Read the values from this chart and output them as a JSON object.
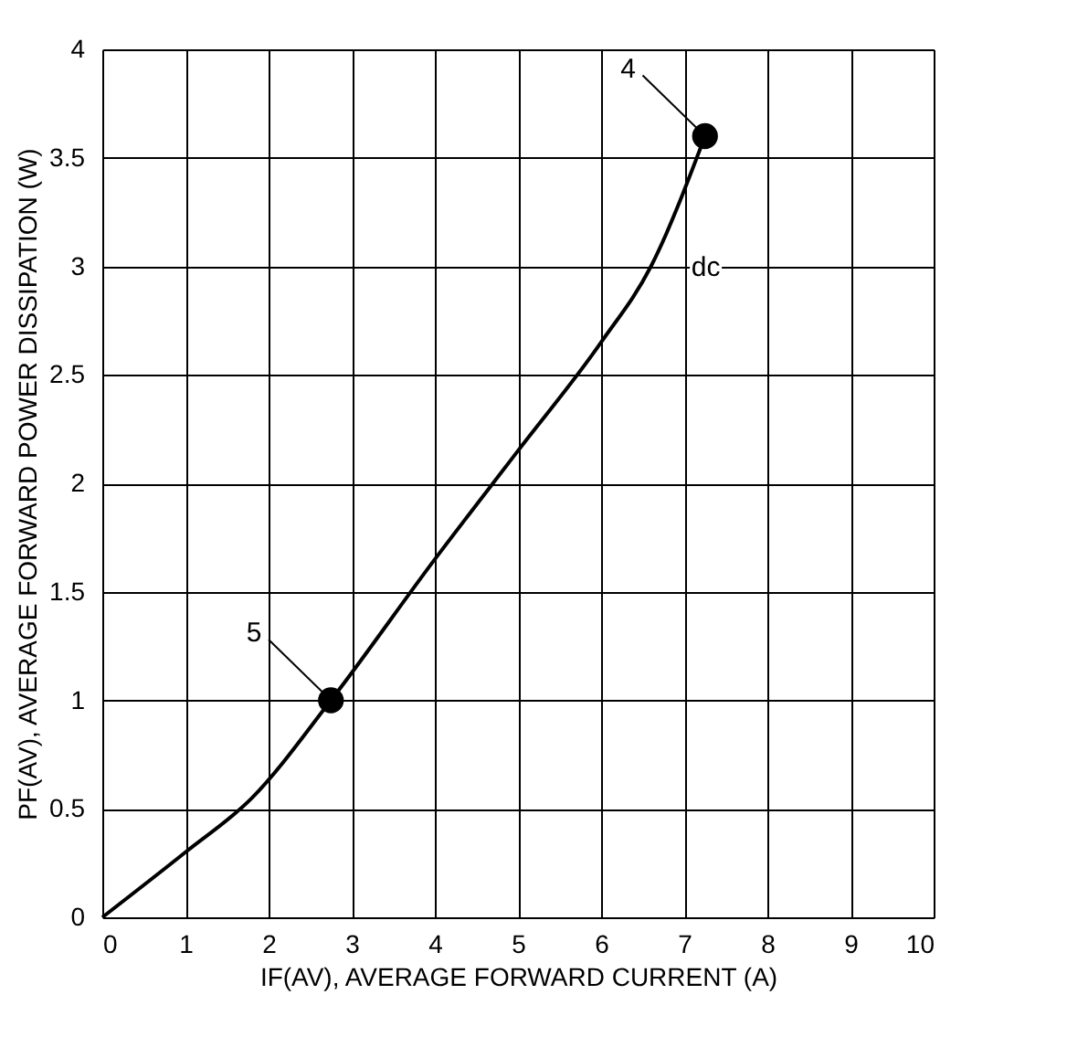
{
  "chart_data": {
    "type": "line",
    "xlabel": "IF(AV), AVERAGE FORWARD CURRENT (A)",
    "ylabel": "PF(AV), AVERAGE FORWARD POWER DISSIPATION (W)",
    "xlim": [
      0,
      10
    ],
    "ylim": [
      0,
      4
    ],
    "xticks": [
      0,
      1,
      2,
      3,
      4,
      5,
      6,
      7,
      8,
      9,
      10
    ],
    "yticks": [
      0,
      0.5,
      1,
      1.5,
      2,
      2.5,
      3,
      3.5,
      4
    ],
    "grid": true,
    "legend": false,
    "series": [
      {
        "name": "dc",
        "color": "#000000",
        "x": [
          0,
          1,
          1.8,
          2.75,
          4,
          5,
          6,
          6.6,
          7.25
        ],
        "values": [
          0,
          0.3,
          0.55,
          1.0,
          1.65,
          2.15,
          2.65,
          3.0,
          3.6
        ]
      },
      {
        "type": "scatter",
        "marker": "circle",
        "color": "#000000",
        "x": [
          2.75,
          7.25
        ],
        "values": [
          1.0,
          3.6
        ]
      }
    ],
    "annotations": [
      {
        "text": "4",
        "x": 7.25,
        "y": 3.6
      },
      {
        "text": "5",
        "x": 2.75,
        "y": 1.0
      }
    ]
  }
}
